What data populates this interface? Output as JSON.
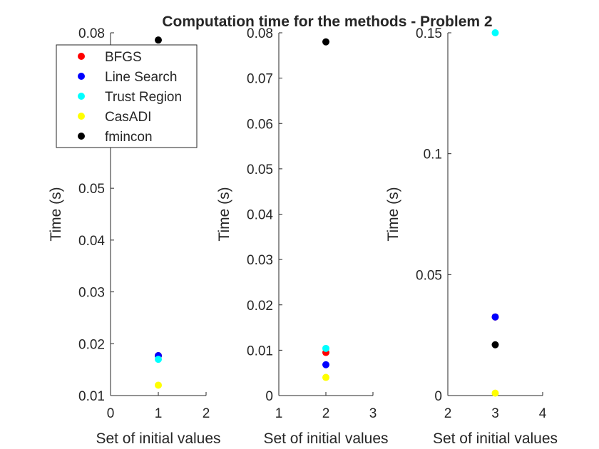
{
  "title": "Computation time for the methods - Problem 2",
  "legend": {
    "placement": "top-left",
    "entries": [
      {
        "label": "BFGS",
        "color": "#ff0000"
      },
      {
        "label": "Line Search",
        "color": "#0000ff"
      },
      {
        "label": "Trust Region",
        "color": "#00ffff"
      },
      {
        "label": "CasADI",
        "color": "#ffff00"
      },
      {
        "label": "fmincon",
        "color": "#000000"
      }
    ]
  },
  "chart_data": [
    {
      "type": "scatter",
      "xlabel": "Set of initial values",
      "ylabel": "Time (s)",
      "xlim": [
        0,
        2
      ],
      "ylim": [
        0.01,
        0.08
      ],
      "xticks": [
        0,
        1,
        2
      ],
      "xtick_labels": [
        "0",
        "1",
        "2"
      ],
      "yticks": [
        0.01,
        0.02,
        0.03,
        0.04,
        0.05,
        0.06,
        0.07,
        0.08
      ],
      "ytick_labels": [
        "0.01",
        "0.02",
        "0.03",
        "0.04",
        "0.05",
        "0.06",
        "0.07",
        "0.08"
      ],
      "grid": false,
      "series": [
        {
          "name": "BFGS",
          "color": "#ff0000",
          "x": [
            1
          ],
          "y": [
            0.0177
          ]
        },
        {
          "name": "Line Search",
          "color": "#0000ff",
          "x": [
            1
          ],
          "y": [
            0.0177
          ]
        },
        {
          "name": "Trust Region",
          "color": "#00ffff",
          "x": [
            1
          ],
          "y": [
            0.017
          ]
        },
        {
          "name": "CasADI",
          "color": "#ffff00",
          "x": [
            1
          ],
          "y": [
            0.012
          ]
        },
        {
          "name": "fmincon",
          "color": "#000000",
          "x": [
            1
          ],
          "y": [
            0.0786
          ]
        }
      ]
    },
    {
      "type": "scatter",
      "xlabel": "Set of initial values",
      "ylabel": "Time (s)",
      "xlim": [
        1,
        3
      ],
      "ylim": [
        0,
        0.08
      ],
      "xticks": [
        1,
        2,
        3
      ],
      "xtick_labels": [
        "1",
        "2",
        "3"
      ],
      "yticks": [
        0,
        0.01,
        0.02,
        0.03,
        0.04,
        0.05,
        0.06,
        0.07,
        0.08
      ],
      "ytick_labels": [
        "0",
        "0.01",
        "0.02",
        "0.03",
        "0.04",
        "0.05",
        "0.06",
        "0.07",
        "0.08"
      ],
      "grid": false,
      "series": [
        {
          "name": "BFGS",
          "color": "#ff0000",
          "x": [
            2
          ],
          "y": [
            0.0095
          ]
        },
        {
          "name": "Line Search",
          "color": "#0000ff",
          "x": [
            2
          ],
          "y": [
            0.0068
          ]
        },
        {
          "name": "Trust Region",
          "color": "#00ffff",
          "x": [
            2
          ],
          "y": [
            0.0104
          ]
        },
        {
          "name": "CasADI",
          "color": "#ffff00",
          "x": [
            2
          ],
          "y": [
            0.004
          ]
        },
        {
          "name": "fmincon",
          "color": "#000000",
          "x": [
            2
          ],
          "y": [
            0.078
          ]
        }
      ]
    },
    {
      "type": "scatter",
      "xlabel": "Set of initial values",
      "ylabel": "Time (s)",
      "xlim": [
        2,
        4
      ],
      "ylim": [
        0,
        0.15
      ],
      "xticks": [
        2,
        3,
        4
      ],
      "xtick_labels": [
        "2",
        "3",
        "4"
      ],
      "yticks": [
        0,
        0.05,
        0.1,
        0.15
      ],
      "ytick_labels": [
        "0",
        "0.05",
        "0.1",
        "0.15"
      ],
      "grid": false,
      "series": [
        {
          "name": "BFGS",
          "color": "#ff0000",
          "x": [
            3
          ],
          "y": [
            0.0325
          ]
        },
        {
          "name": "Line Search",
          "color": "#0000ff",
          "x": [
            3
          ],
          "y": [
            0.0325
          ]
        },
        {
          "name": "Trust Region",
          "color": "#00ffff",
          "x": [
            3
          ],
          "y": [
            0.15
          ]
        },
        {
          "name": "CasADI",
          "color": "#ffff00",
          "x": [
            3
          ],
          "y": [
            0.001
          ]
        },
        {
          "name": "fmincon",
          "color": "#000000",
          "x": [
            3
          ],
          "y": [
            0.021
          ]
        }
      ]
    }
  ]
}
